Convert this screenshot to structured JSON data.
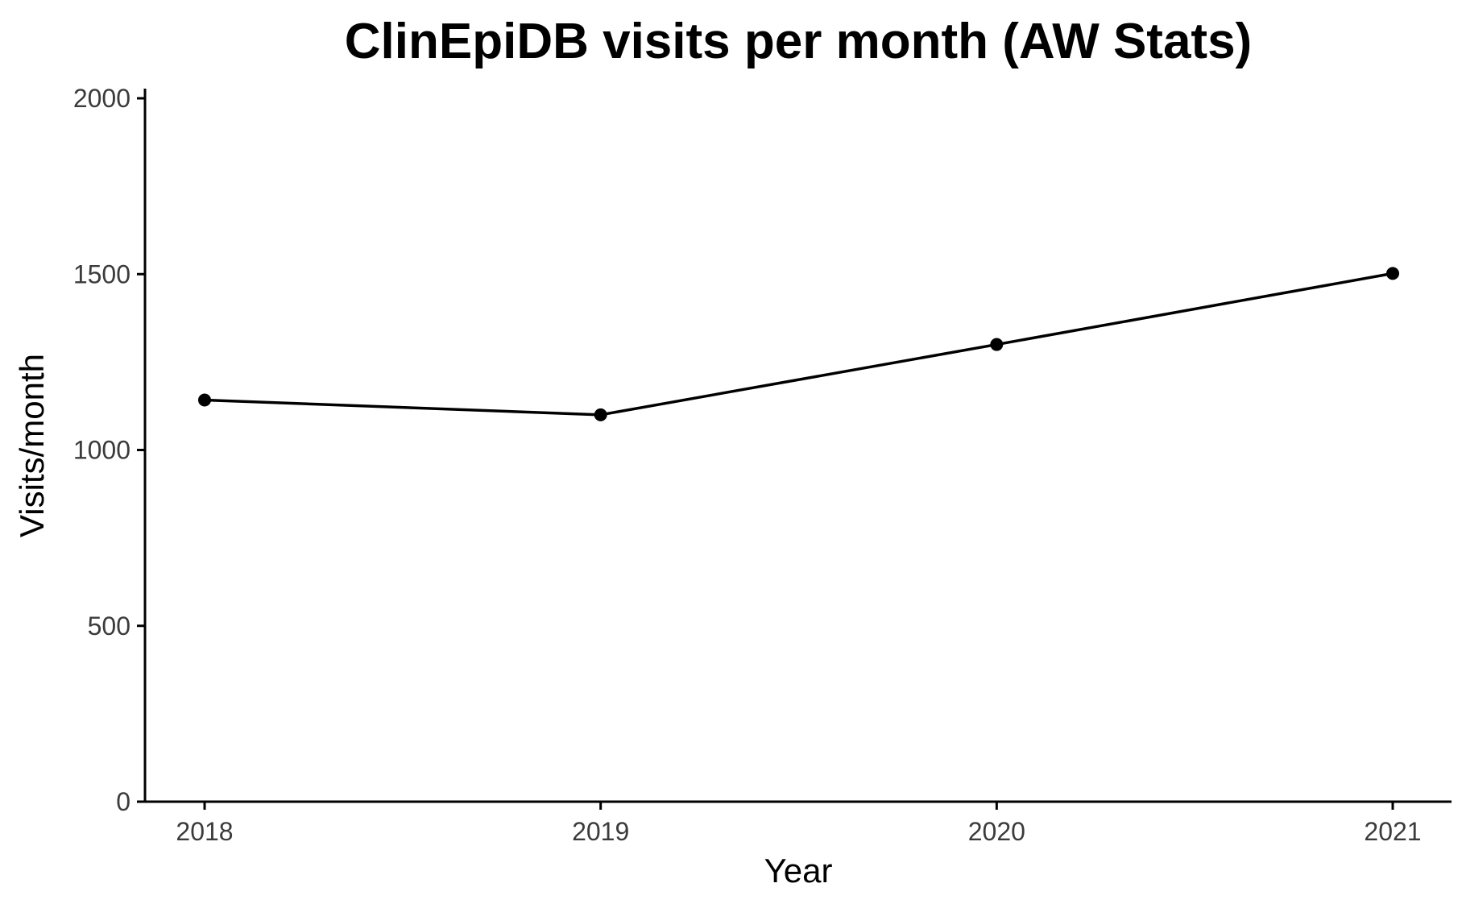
{
  "chart_data": {
    "type": "line",
    "title": "ClinEpiDB visits per month (AW Stats)",
    "xlabel": "Year",
    "ylabel": "Visits/month",
    "x": [
      "2018",
      "2019",
      "2020",
      "2021"
    ],
    "values": [
      1142,
      1100,
      1300,
      1502
    ],
    "ylim": [
      0,
      2000
    ],
    "yticks": [
      0,
      500,
      1000,
      1500,
      2000
    ],
    "grid": false,
    "line_color": "#000000",
    "point_color": "#000000"
  }
}
